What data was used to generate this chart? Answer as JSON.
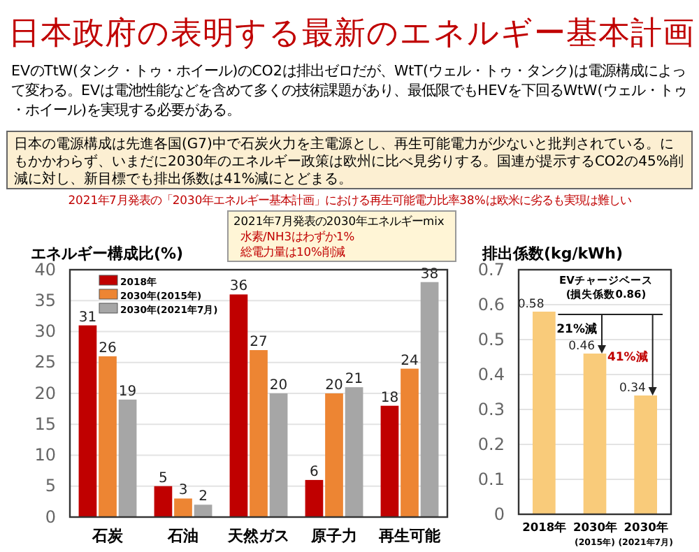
{
  "chart_data": [
    {
      "type": "bar",
      "title": "日本政府の表明する最新のエネルギー基本計画",
      "ylabel": "エネルギー構成比(%)",
      "annotations": [
        "EVのTtW(タンク・トゥ・ホイール)のCO2は排出ゼロだが、WtT(ウェル・トゥ・タンク)は電源構成によって変わる。EVは電池性能などを含めて多くの技術課題があり、最低限でもHEVを下回るWtW(ウェル・トゥ・ホイール)を実現する必要がある。",
        "日本の電源構成は先進各国(G7)中で石炭火力を主電源とし、再生可能電力が少ないと批判されている。にもかかわらず、いまだに2030年のエネルギー政策は欧州に比べ見劣りする。国連が提示するCO2の45%削減に対し、新目標でも排出係数は41%減にとどまる。",
        "2021年7月発表の「2030年エネルギー基本計画」における再生可能電力比率38%は欧米に劣るも実現は難しい",
        "2021年7月発表の2030年エネルギーmix",
        "水素/NH3はわずか1%\n総電力量は10%削減"
      ],
      "categories": [
        "石炭",
        "石油",
        "天然ガス",
        "原子力",
        "再生可能"
      ],
      "series": [
        {
          "name": "2018年",
          "color": "#c00000",
          "values": [
            31,
            5,
            36,
            6,
            18
          ]
        },
        {
          "name": "2030年(2015年)",
          "color": "#ed8533",
          "values": [
            26,
            3,
            27,
            20,
            24
          ]
        },
        {
          "name": "2030年(2021年7月)",
          "color": "#a6a6a6",
          "values": [
            19,
            2,
            20,
            21,
            38
          ]
        }
      ],
      "ylim": [
        0,
        40
      ],
      "yticks": [
        0,
        5,
        10,
        15,
        20,
        25,
        30,
        35,
        40
      ],
      "grid": "y",
      "legend": "top left",
      "data_labels": true
    },
    {
      "type": "bar",
      "ylabel": "排出係数(kg/kWh)",
      "annotations": [
        "EVチャージベース\n(損失係数0.86)",
        "21%減",
        "41%減"
      ],
      "categories": [
        "2018年",
        "2030年\n(2015年)",
        "2030年\n(2021年7月)"
      ],
      "series": [
        {
          "color": "#f9cb7a",
          "values": [
            0.58,
            0.46,
            0.34
          ]
        }
      ],
      "ylim": [
        0,
        0.7
      ],
      "yticks": [
        0,
        0.1,
        0.2,
        0.3,
        0.4,
        0.5,
        0.6,
        0.7
      ],
      "grid": "y",
      "data_labels": true
    }
  ]
}
